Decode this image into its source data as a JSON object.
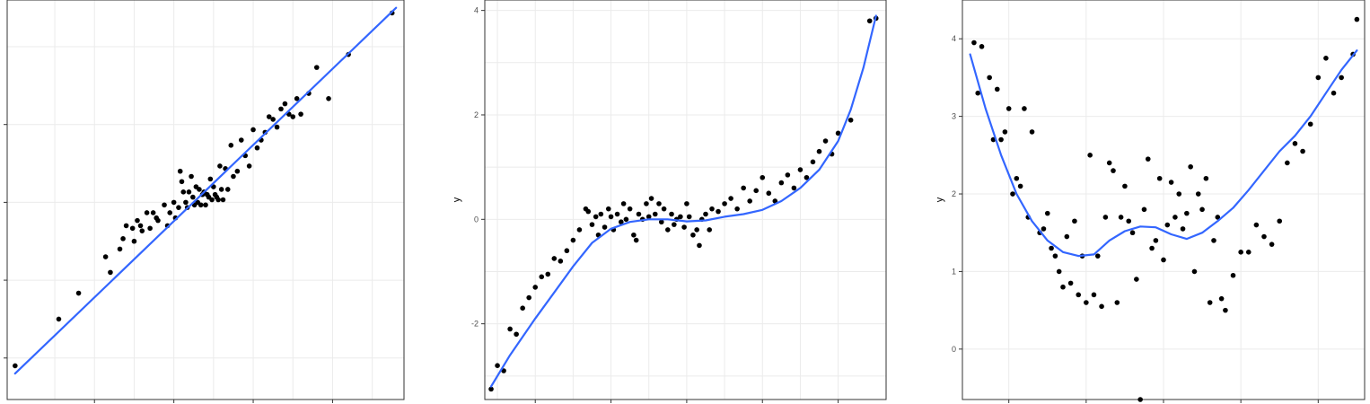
{
  "chart_data": [
    {
      "type": "scatter",
      "fit": "linear",
      "xlim": [
        -2.6,
        2.4
      ],
      "ylim": [
        -3.8,
        3.9
      ],
      "x_grid": [
        -2,
        -1.5,
        -1,
        -0.5,
        0,
        0.5,
        1,
        1.5,
        2
      ],
      "y_grid": [
        -3,
        -1.5,
        0,
        1.5,
        3
      ],
      "y_ticks": [
        -3,
        -1.5,
        0,
        1.5
      ],
      "y_tick_labels": [],
      "ylabel": "",
      "grid": true,
      "line_color": "#3366ff",
      "fit_line": {
        "x": [
          -2.5,
          2.3
        ],
        "y": [
          -3.3,
          3.75
        ]
      },
      "points": {
        "x": [
          -2.5,
          -1.95,
          -1.7,
          -1.36,
          -1.3,
          -1.18,
          -1.14,
          -1.1,
          -1.02,
          -1.0,
          -0.96,
          -0.92,
          -0.9,
          -0.84,
          -0.8,
          -0.76,
          -0.72,
          -0.7,
          -0.62,
          -0.58,
          -0.55,
          -0.5,
          -0.48,
          -0.44,
          -0.42,
          -0.4,
          -0.38,
          -0.35,
          -0.33,
          -0.31,
          -0.28,
          -0.26,
          -0.24,
          -0.22,
          -0.2,
          -0.18,
          -0.16,
          -0.14,
          -0.12,
          -0.1,
          -0.08,
          -0.06,
          -0.04,
          -0.02,
          0.0,
          0.02,
          0.04,
          0.06,
          0.08,
          0.1,
          0.12,
          0.15,
          0.18,
          0.22,
          0.25,
          0.3,
          0.35,
          0.4,
          0.45,
          0.5,
          0.55,
          0.6,
          0.65,
          0.7,
          0.75,
          0.8,
          0.85,
          0.9,
          0.95,
          1.0,
          1.05,
          1.1,
          1.2,
          1.3,
          1.45,
          1.7,
          2.25
        ],
        "y": [
          -3.15,
          -2.25,
          -1.75,
          -1.05,
          -1.35,
          -0.9,
          -0.7,
          -0.45,
          -0.5,
          -0.75,
          -0.35,
          -0.45,
          -0.55,
          -0.2,
          -0.5,
          -0.2,
          -0.3,
          -0.35,
          -0.05,
          -0.45,
          -0.2,
          0.0,
          -0.3,
          -0.1,
          0.6,
          0.4,
          0.2,
          0.0,
          -0.1,
          0.2,
          0.5,
          0.1,
          -0.05,
          0.3,
          0.0,
          0.25,
          -0.05,
          0.15,
          0.2,
          -0.05,
          0.15,
          0.1,
          0.45,
          0.05,
          0.3,
          0.15,
          0.1,
          0.05,
          0.7,
          0.25,
          0.05,
          0.65,
          0.25,
          1.1,
          0.5,
          0.6,
          1.2,
          0.9,
          0.7,
          1.4,
          1.05,
          1.2,
          1.35,
          1.65,
          1.6,
          1.45,
          1.8,
          1.9,
          1.7,
          1.65,
          2.0,
          1.7,
          2.1,
          2.6,
          2.0,
          2.85,
          3.65
        ]
      }
    },
    {
      "type": "scatter",
      "fit": "loess",
      "xlim": [
        -1.3,
        1.88
      ],
      "ylim": [
        -3.45,
        4.2
      ],
      "x_grid": [
        -1.2,
        -0.9,
        -0.6,
        -0.3,
        0,
        0.3,
        0.6,
        0.9,
        1.2,
        1.5
      ],
      "y_grid": [
        -3,
        -2,
        -1,
        0,
        1,
        2,
        3,
        4
      ],
      "y_ticks": [
        -2,
        0,
        2,
        4
      ],
      "y_tick_labels": [
        "-2",
        "0",
        "2",
        "4"
      ],
      "ylabel": "y",
      "grid": true,
      "line_color": "#3366ff",
      "fit_line": {
        "x": [
          -1.25,
          -1.1,
          -0.9,
          -0.75,
          -0.6,
          -0.45,
          -0.3,
          -0.15,
          0.0,
          0.15,
          0.3,
          0.45,
          0.6,
          0.75,
          0.9,
          1.05,
          1.2,
          1.35,
          1.5,
          1.6,
          1.7,
          1.8
        ],
        "y": [
          -3.2,
          -2.6,
          -1.9,
          -1.4,
          -0.9,
          -0.45,
          -0.18,
          -0.05,
          0.0,
          0.0,
          -0.04,
          -0.02,
          0.05,
          0.1,
          0.18,
          0.35,
          0.6,
          0.95,
          1.5,
          2.1,
          2.9,
          3.9
        ]
      },
      "points": {
        "x": [
          -1.25,
          -1.2,
          -1.15,
          -1.1,
          -1.05,
          -1.0,
          -0.95,
          -0.9,
          -0.85,
          -0.8,
          -0.75,
          -0.7,
          -0.65,
          -0.6,
          -0.55,
          -0.5,
          -0.48,
          -0.45,
          -0.42,
          -0.4,
          -0.38,
          -0.35,
          -0.32,
          -0.3,
          -0.28,
          -0.25,
          -0.22,
          -0.2,
          -0.18,
          -0.15,
          -0.12,
          -0.1,
          -0.08,
          -0.05,
          -0.02,
          0.0,
          0.02,
          0.05,
          0.08,
          0.1,
          0.12,
          0.15,
          0.18,
          0.2,
          0.22,
          0.25,
          0.28,
          0.3,
          0.32,
          0.35,
          0.38,
          0.4,
          0.42,
          0.45,
          0.48,
          0.5,
          0.55,
          0.6,
          0.65,
          0.7,
          0.75,
          0.8,
          0.85,
          0.9,
          0.95,
          1.0,
          1.05,
          1.1,
          1.15,
          1.2,
          1.25,
          1.3,
          1.35,
          1.4,
          1.45,
          1.5,
          1.6,
          1.75,
          1.8
        ],
        "y": [
          -3.25,
          -2.8,
          -2.9,
          -2.1,
          -2.2,
          -1.7,
          -1.5,
          -1.3,
          -1.1,
          -1.05,
          -0.75,
          -0.8,
          -0.6,
          -0.4,
          -0.2,
          0.2,
          0.15,
          -0.1,
          0.05,
          -0.3,
          0.1,
          -0.15,
          0.2,
          0.05,
          -0.2,
          0.1,
          -0.05,
          0.3,
          0.0,
          0.2,
          -0.3,
          -0.4,
          0.1,
          0.0,
          0.3,
          0.05,
          0.4,
          0.1,
          0.3,
          -0.05,
          0.2,
          -0.2,
          0.1,
          -0.1,
          0.0,
          0.05,
          -0.15,
          0.3,
          0.05,
          -0.3,
          -0.2,
          -0.5,
          0.0,
          0.1,
          -0.2,
          0.2,
          0.15,
          0.3,
          0.4,
          0.2,
          0.6,
          0.35,
          0.55,
          0.8,
          0.5,
          0.35,
          0.7,
          0.85,
          0.6,
          0.95,
          0.8,
          1.1,
          1.3,
          1.5,
          1.25,
          1.65,
          1.9,
          3.8,
          3.85
        ]
      }
    },
    {
      "type": "scatter",
      "fit": "loess",
      "xlim": [
        -2.6,
        2.6
      ],
      "ylim": [
        -0.65,
        4.5
      ],
      "x_grid": [
        -2,
        -1,
        0,
        1,
        2
      ],
      "y_grid": [
        0,
        1,
        2,
        3,
        4
      ],
      "y_ticks": [
        0,
        1,
        2,
        3,
        4
      ],
      "y_tick_labels": [
        "0",
        "1",
        "2",
        "3",
        "4"
      ],
      "ylabel": "y",
      "grid": true,
      "line_color": "#3366ff",
      "fit_line": {
        "x": [
          -2.5,
          -2.3,
          -2.1,
          -1.9,
          -1.7,
          -1.5,
          -1.3,
          -1.1,
          -0.9,
          -0.7,
          -0.5,
          -0.3,
          -0.1,
          0.1,
          0.3,
          0.5,
          0.7,
          0.9,
          1.1,
          1.3,
          1.5,
          1.7,
          1.9,
          2.1,
          2.3,
          2.5
        ],
        "y": [
          3.8,
          3.1,
          2.5,
          2.0,
          1.65,
          1.4,
          1.25,
          1.2,
          1.22,
          1.4,
          1.52,
          1.58,
          1.57,
          1.48,
          1.42,
          1.5,
          1.65,
          1.82,
          2.05,
          2.3,
          2.55,
          2.75,
          3.0,
          3.3,
          3.6,
          3.85
        ]
      },
      "points": {
        "x": [
          -2.45,
          -2.4,
          -2.35,
          -2.25,
          -2.2,
          -2.15,
          -2.1,
          -2.05,
          -2.0,
          -1.95,
          -1.9,
          -1.85,
          -1.8,
          -1.75,
          -1.7,
          -1.6,
          -1.55,
          -1.5,
          -1.45,
          -1.4,
          -1.35,
          -1.3,
          -1.25,
          -1.2,
          -1.15,
          -1.1,
          -1.05,
          -1.0,
          -0.95,
          -0.9,
          -0.85,
          -0.8,
          -0.75,
          -0.7,
          -0.65,
          -0.6,
          -0.55,
          -0.5,
          -0.45,
          -0.4,
          -0.35,
          -0.3,
          -0.25,
          -0.2,
          -0.15,
          -0.1,
          -0.05,
          0.0,
          0.05,
          0.1,
          0.15,
          0.2,
          0.25,
          0.3,
          0.35,
          0.4,
          0.45,
          0.5,
          0.55,
          0.6,
          0.65,
          0.7,
          0.75,
          0.8,
          0.9,
          1.0,
          1.1,
          1.2,
          1.3,
          1.4,
          1.5,
          1.6,
          1.7,
          1.8,
          1.9,
          2.0,
          2.1,
          2.2,
          2.3,
          2.45,
          2.5
        ],
        "y": [
          3.95,
          3.3,
          3.9,
          3.5,
          2.7,
          3.35,
          2.7,
          2.8,
          3.1,
          2.0,
          2.2,
          2.1,
          3.1,
          1.7,
          2.8,
          1.5,
          1.55,
          1.75,
          1.3,
          1.2,
          1.0,
          0.8,
          1.45,
          0.85,
          1.65,
          0.7,
          1.2,
          0.6,
          2.5,
          0.7,
          1.2,
          0.55,
          1.7,
          2.4,
          2.3,
          0.6,
          1.7,
          2.1,
          1.65,
          1.5,
          0.9,
          -0.65,
          1.8,
          2.45,
          1.3,
          1.4,
          2.2,
          1.15,
          1.6,
          2.15,
          1.7,
          2.0,
          1.55,
          1.75,
          2.35,
          1.0,
          2.0,
          1.8,
          2.2,
          0.6,
          1.4,
          1.7,
          0.65,
          0.5,
          0.95,
          1.25,
          1.25,
          1.6,
          1.45,
          1.35,
          1.65,
          2.4,
          2.65,
          2.55,
          2.9,
          3.5,
          3.75,
          3.3,
          3.5,
          3.8,
          4.25
        ]
      }
    }
  ]
}
